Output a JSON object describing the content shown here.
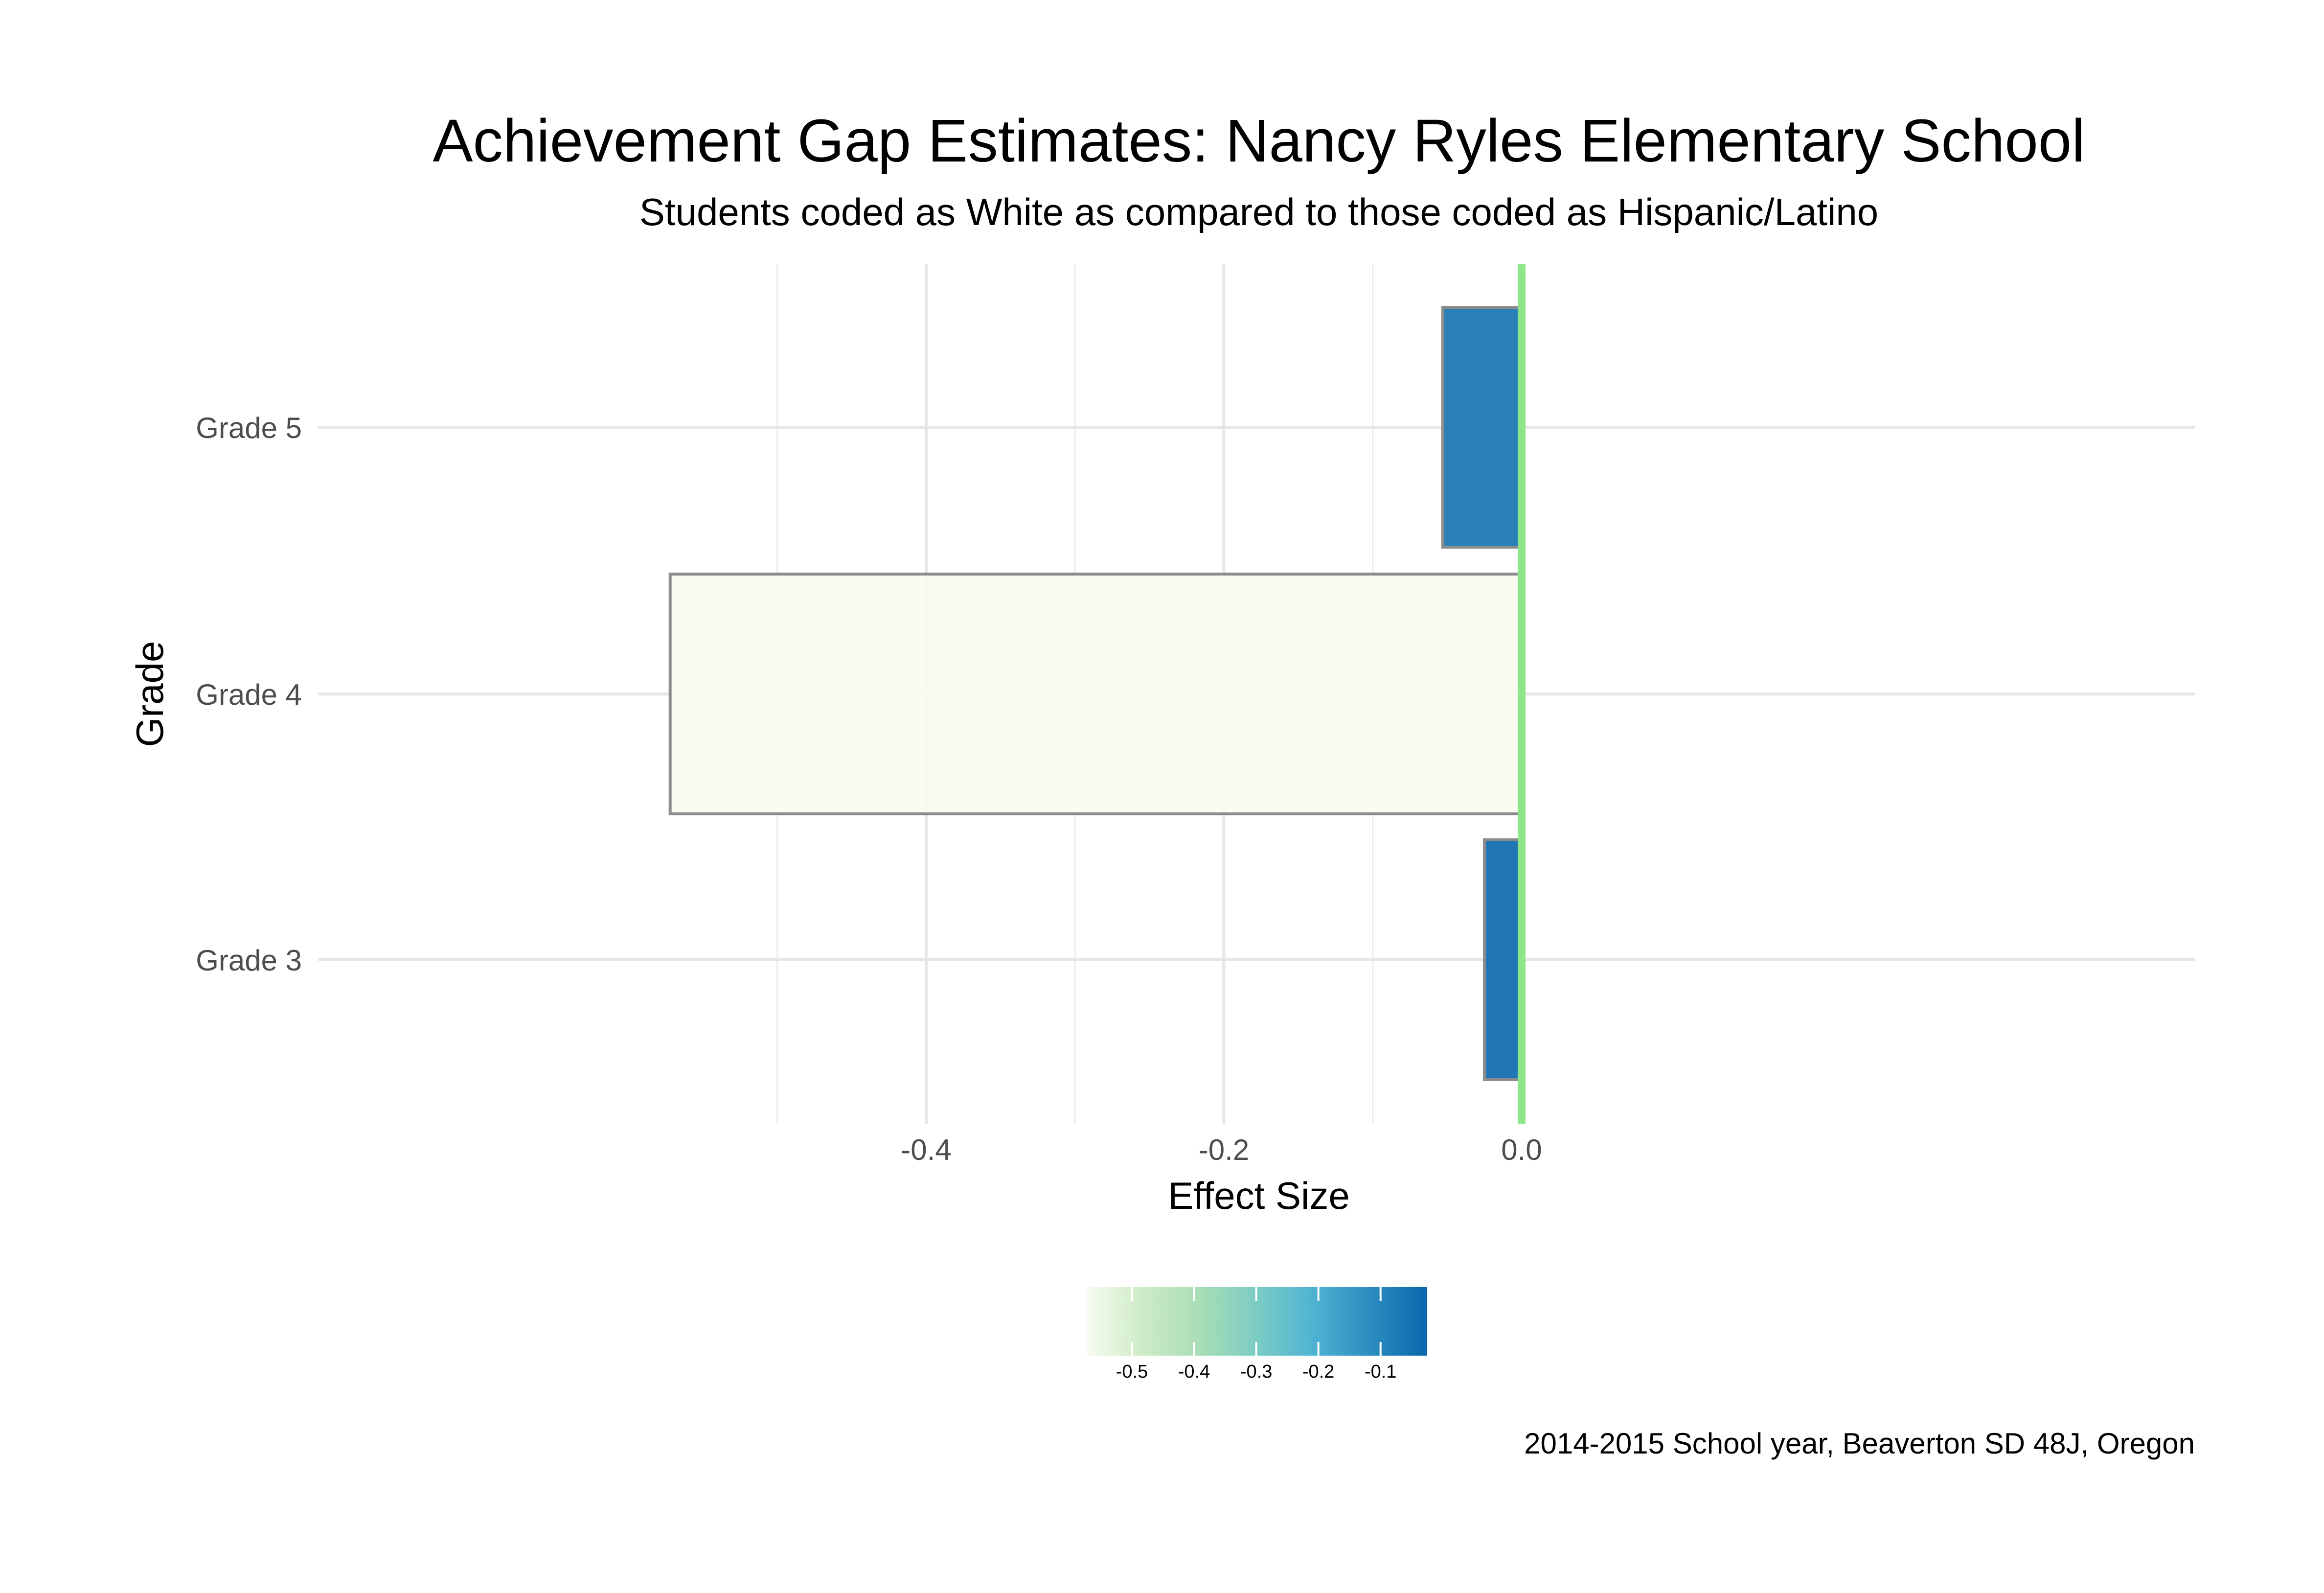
{
  "chart_data": {
    "type": "bar",
    "orientation": "horizontal",
    "title": "Achievement Gap Estimates: Nancy Ryles Elementary School",
    "subtitle": "Students coded as White as compared to those coded as Hispanic/Latino",
    "xlabel": "Effect Size",
    "ylabel": "Grade",
    "caption": "2014-2015 School year, Beaverton SD 48J, Oregon",
    "categories": [
      "Grade 3",
      "Grade 4",
      "Grade 5"
    ],
    "values": [
      -0.025,
      -0.572,
      -0.053
    ],
    "xlim": [
      -0.6,
      0.03
    ],
    "x_ticks": [
      -0.4,
      -0.2,
      0.0
    ],
    "x_tick_labels": [
      "-0.4",
      "-0.2",
      "0.0"
    ],
    "reference_line": {
      "x": 0.0,
      "color": "#8ee68a"
    },
    "grid": true,
    "bar_border_color": "#8c8c8c",
    "legend": {
      "type": "colorbar",
      "position": "bottom",
      "range": [
        -0.572,
        -0.025
      ],
      "ticks": [
        -0.5,
        -0.4,
        -0.3,
        -0.2,
        -0.1
      ],
      "tick_labels": [
        "-0.5",
        "-0.4",
        "-0.3",
        "-0.2",
        "-0.1"
      ],
      "color_stops": [
        "#f7fcf0",
        "#ccebc5",
        "#a8ddb5",
        "#7bccc4",
        "#4eb3d3",
        "#2b8cbe",
        "#0868ac"
      ]
    }
  }
}
